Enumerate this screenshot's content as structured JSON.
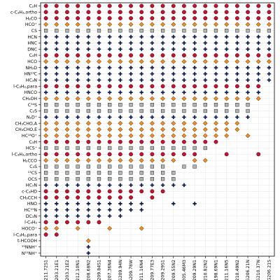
{
  "chart_data": {
    "type": "scatter",
    "title": "",
    "xlabel": "",
    "ylabel": "",
    "grid": true,
    "markers": {
      "circle": {
        "color": "#c8102e",
        "edge": "#000000"
      },
      "diamond": {
        "color": "#f28c1e",
        "edge": "#000000"
      },
      "square": {
        "color": "#b3b3b3",
        "edge": "#000000"
      },
      "plus": {
        "color": "#14214f"
      }
    },
    "sources": [
      "G211.72S1",
      "G203.21E1",
      "G203.21E2",
      "G212.10N1",
      "G208.68N2",
      "G209.84S1",
      "G207.36N4",
      "G209.94N",
      "G209.78W",
      "G211.16N4",
      "G209.77E3",
      "G209.29S1",
      "G209.55N2",
      "G205.46M3",
      "G209.29N1",
      "G210.82N2",
      "G198.69N1",
      "G211.16N5",
      "G210.49N2",
      "G206.21N",
      "G210.37N",
      "G206.21S"
    ],
    "molecules": [
      {
        "label": "C₂H",
        "marker": "circle",
        "present": [
          0,
          1,
          2,
          3,
          4,
          5,
          6,
          7,
          8,
          9,
          10,
          11,
          12,
          13,
          14,
          15,
          16,
          17,
          18,
          19,
          20,
          21
        ]
      },
      {
        "label": "c-C₃H₂,ortho",
        "marker": "circle",
        "present": [
          0,
          1,
          2,
          3,
          4,
          5,
          6,
          7,
          8,
          9,
          10,
          11,
          12,
          13,
          14,
          15,
          16,
          17,
          18,
          19,
          20,
          21
        ]
      },
      {
        "label": "H₂CO",
        "marker": "circle",
        "present": [
          0,
          1,
          2,
          3,
          4,
          5,
          6,
          7,
          8,
          9,
          10,
          11,
          12,
          13,
          14,
          15,
          16,
          17,
          18,
          19,
          20,
          21
        ]
      },
      {
        "label": "HCO⁺",
        "marker": "diamond",
        "present": [
          0,
          1,
          2,
          3,
          4,
          5,
          6,
          7,
          8,
          9,
          10,
          11,
          12,
          13,
          14,
          15,
          16,
          17,
          18,
          19,
          20,
          21
        ]
      },
      {
        "label": "CS",
        "marker": "square",
        "present": [
          0,
          1,
          2,
          3,
          4,
          5,
          6,
          7,
          8,
          9,
          10,
          11,
          12,
          13,
          14,
          15,
          16,
          17,
          18,
          19,
          20,
          21
        ]
      },
      {
        "label": "HCN",
        "marker": "plus",
        "present": [
          0,
          1,
          2,
          3,
          4,
          5,
          6,
          7,
          8,
          9,
          10,
          11,
          12,
          13,
          14,
          15,
          16,
          17,
          18,
          19,
          20,
          21
        ]
      },
      {
        "label": "HNC",
        "marker": "plus",
        "present": [
          0,
          1,
          2,
          3,
          4,
          5,
          6,
          7,
          8,
          9,
          10,
          11,
          12,
          13,
          14,
          15,
          16,
          17,
          18,
          19,
          20,
          21
        ]
      },
      {
        "label": "DNC",
        "marker": "plus",
        "present": [
          0,
          1,
          2,
          3,
          4,
          5,
          6,
          7,
          8,
          9,
          10,
          11,
          12,
          13,
          14,
          15,
          16,
          17,
          18,
          19,
          20,
          21
        ]
      },
      {
        "label": "C₄H",
        "marker": "circle",
        "present": [
          0,
          1,
          2,
          3,
          4,
          5,
          6,
          7,
          8,
          9,
          10,
          11,
          12,
          13,
          14,
          15,
          16,
          17,
          18,
          19,
          20,
          21
        ]
      },
      {
        "label": "HCO",
        "marker": "diamond",
        "present": [
          0,
          1,
          2,
          3,
          4,
          5,
          6,
          7,
          8,
          9,
          10,
          11,
          12,
          13,
          14,
          15,
          16,
          17,
          18,
          19,
          20,
          21
        ]
      },
      {
        "label": "NH₂D",
        "marker": "plus",
        "present": [
          0,
          1,
          2,
          3,
          4,
          5,
          6,
          7,
          8,
          9,
          10,
          11,
          12,
          13,
          14,
          15,
          16,
          17,
          18,
          19,
          20,
          21
        ]
      },
      {
        "label": "HN¹³C",
        "marker": "plus",
        "present": [
          0,
          1,
          2,
          3,
          4,
          5,
          6,
          7,
          8,
          9,
          10,
          11,
          12,
          13,
          14,
          15,
          16,
          17,
          18,
          19,
          20,
          21
        ]
      },
      {
        "label": "HC₃N",
        "marker": "plus",
        "present": [
          0,
          1,
          2,
          3,
          4,
          5,
          6,
          7,
          8,
          9,
          10,
          11,
          12,
          13,
          14,
          15,
          16,
          17,
          18,
          19,
          20,
          21
        ]
      },
      {
        "label": "l-C₃H₂,para",
        "marker": "circle",
        "present": [
          0,
          1,
          2,
          3,
          4,
          5,
          6,
          7,
          8,
          9,
          10,
          11,
          12,
          13,
          14,
          15,
          16,
          17,
          18,
          19,
          20
        ]
      },
      {
        "label": "HNCO",
        "marker": "plus",
        "present": [
          0,
          1,
          2,
          3,
          4,
          5,
          6,
          7,
          8,
          9,
          10,
          11,
          12,
          13,
          14,
          15,
          16,
          17,
          18,
          19,
          20
        ]
      },
      {
        "label": "CH₃OH",
        "marker": "diamond",
        "present": [
          0,
          1,
          2,
          3,
          4,
          5,
          6,
          7,
          8,
          9,
          10,
          11,
          12,
          13,
          14,
          15,
          16,
          17,
          18,
          19,
          20
        ]
      },
      {
        "label": "C³⁴S",
        "marker": "square",
        "present": [
          0,
          1,
          2,
          3,
          4,
          5,
          6,
          7,
          8,
          9,
          10,
          11,
          12,
          13,
          14,
          15,
          16,
          17,
          18,
          19
        ]
      },
      {
        "label": "C₂S",
        "marker": "square",
        "present": [
          0,
          1,
          2,
          3,
          4,
          5,
          6,
          7,
          8,
          9,
          10,
          11,
          12,
          13,
          14,
          15,
          16,
          17,
          18,
          19
        ]
      },
      {
        "label": "N₂D⁺",
        "marker": "plus",
        "present": [
          0,
          1,
          2,
          3,
          4,
          5,
          6,
          7,
          8,
          9,
          10,
          11,
          12,
          13,
          14,
          15,
          16,
          17,
          18,
          19
        ]
      },
      {
        "label": "CH₃CHO,A",
        "marker": "diamond",
        "present": [
          0,
          1,
          2,
          3,
          4,
          5,
          6,
          7,
          8,
          9,
          10,
          11,
          12,
          13,
          14,
          15,
          16,
          17,
          18
        ]
      },
      {
        "label": "CH₃CHO,E",
        "marker": "diamond",
        "present": [
          0,
          1,
          2,
          3,
          4,
          5,
          6,
          7,
          8,
          9,
          10,
          11,
          12,
          13,
          14,
          15,
          16,
          17,
          18
        ]
      },
      {
        "label": "HC¹⁸O⁺",
        "marker": "diamond",
        "present": [
          0,
          1,
          2,
          3,
          4,
          5,
          6,
          7,
          8,
          9,
          10,
          11,
          12,
          13,
          14,
          15,
          16,
          17,
          19
        ]
      },
      {
        "label": "C₃H",
        "marker": "circle",
        "present": [
          0,
          1,
          2,
          3,
          4,
          5,
          6,
          7,
          8,
          9,
          10,
          11,
          12,
          13,
          14,
          15,
          16
        ]
      },
      {
        "label": "HCS⁺",
        "marker": "square",
        "present": [
          0,
          1,
          2,
          3,
          4,
          5,
          6,
          7,
          8,
          9,
          10,
          11,
          12,
          13,
          14,
          15
        ]
      },
      {
        "label": "l-C₃H₂,ortho",
        "marker": "circle",
        "present": [
          0,
          1,
          2,
          3,
          4,
          5,
          6,
          7,
          8,
          9,
          10,
          11,
          12,
          13,
          14,
          17,
          20
        ]
      },
      {
        "label": "H₂CCO",
        "marker": "diamond",
        "present": [
          0,
          1,
          2,
          3,
          4,
          5,
          6,
          7,
          8,
          9,
          10,
          11,
          12,
          14,
          15
        ]
      },
      {
        "label": "C₃S",
        "marker": "square",
        "present": [
          0,
          1,
          2,
          3,
          4,
          5,
          6,
          7,
          8,
          9,
          10,
          11,
          13,
          14
        ]
      },
      {
        "label": "¹³CS",
        "marker": "square",
        "present": [
          0,
          1,
          2,
          3,
          4,
          5,
          6,
          7,
          8,
          9,
          10,
          11,
          12
        ]
      },
      {
        "label": "OCS",
        "marker": "square",
        "present": [
          0,
          1,
          2,
          3,
          4,
          5,
          6,
          7,
          8,
          9,
          10,
          11,
          12
        ]
      },
      {
        "label": "HC₅N",
        "marker": "plus",
        "present": [
          0,
          1,
          2,
          3,
          4,
          5,
          6,
          7,
          8,
          9,
          10,
          11,
          12,
          13
        ]
      },
      {
        "label": "c-C₃HD",
        "marker": "circle",
        "present": [
          0,
          1,
          2,
          3,
          4,
          5,
          6,
          7,
          8,
          9,
          10,
          11
        ]
      },
      {
        "label": "CH₃CCH",
        "marker": "circle",
        "present": [
          0,
          1,
          2,
          3,
          4,
          5,
          6,
          7,
          8,
          10
        ]
      },
      {
        "label": "HNO",
        "marker": "plus",
        "present": [
          0,
          1,
          2,
          3,
          4,
          5,
          6,
          7,
          8,
          9,
          12,
          14
        ]
      },
      {
        "label": "HC¹⁵N",
        "marker": "plus",
        "present": [
          0,
          1,
          2,
          3,
          4,
          5,
          6,
          7,
          8,
          9
        ]
      },
      {
        "label": "DC₃N",
        "marker": "plus",
        "present": [
          0,
          1,
          2,
          3,
          4,
          5,
          6,
          7
        ]
      },
      {
        "label": "l-C₄H₂",
        "marker": "circle",
        "present": [
          0,
          1,
          2,
          3,
          4,
          5
        ]
      },
      {
        "label": "HOCO⁺",
        "marker": "diamond",
        "present": [
          0,
          1,
          3,
          6,
          9
        ]
      },
      {
        "label": "l-C₃H₂,para",
        "marker": "circle",
        "present": [
          0,
          1
        ]
      },
      {
        "label": "t-HCOOH",
        "marker": "diamond",
        "present": [
          4
        ]
      },
      {
        "label": "¹⁵NNH⁺",
        "marker": "plus",
        "present": [
          4
        ]
      },
      {
        "label": "N¹⁵NH⁺",
        "marker": "plus",
        "present": [
          4
        ]
      }
    ]
  }
}
